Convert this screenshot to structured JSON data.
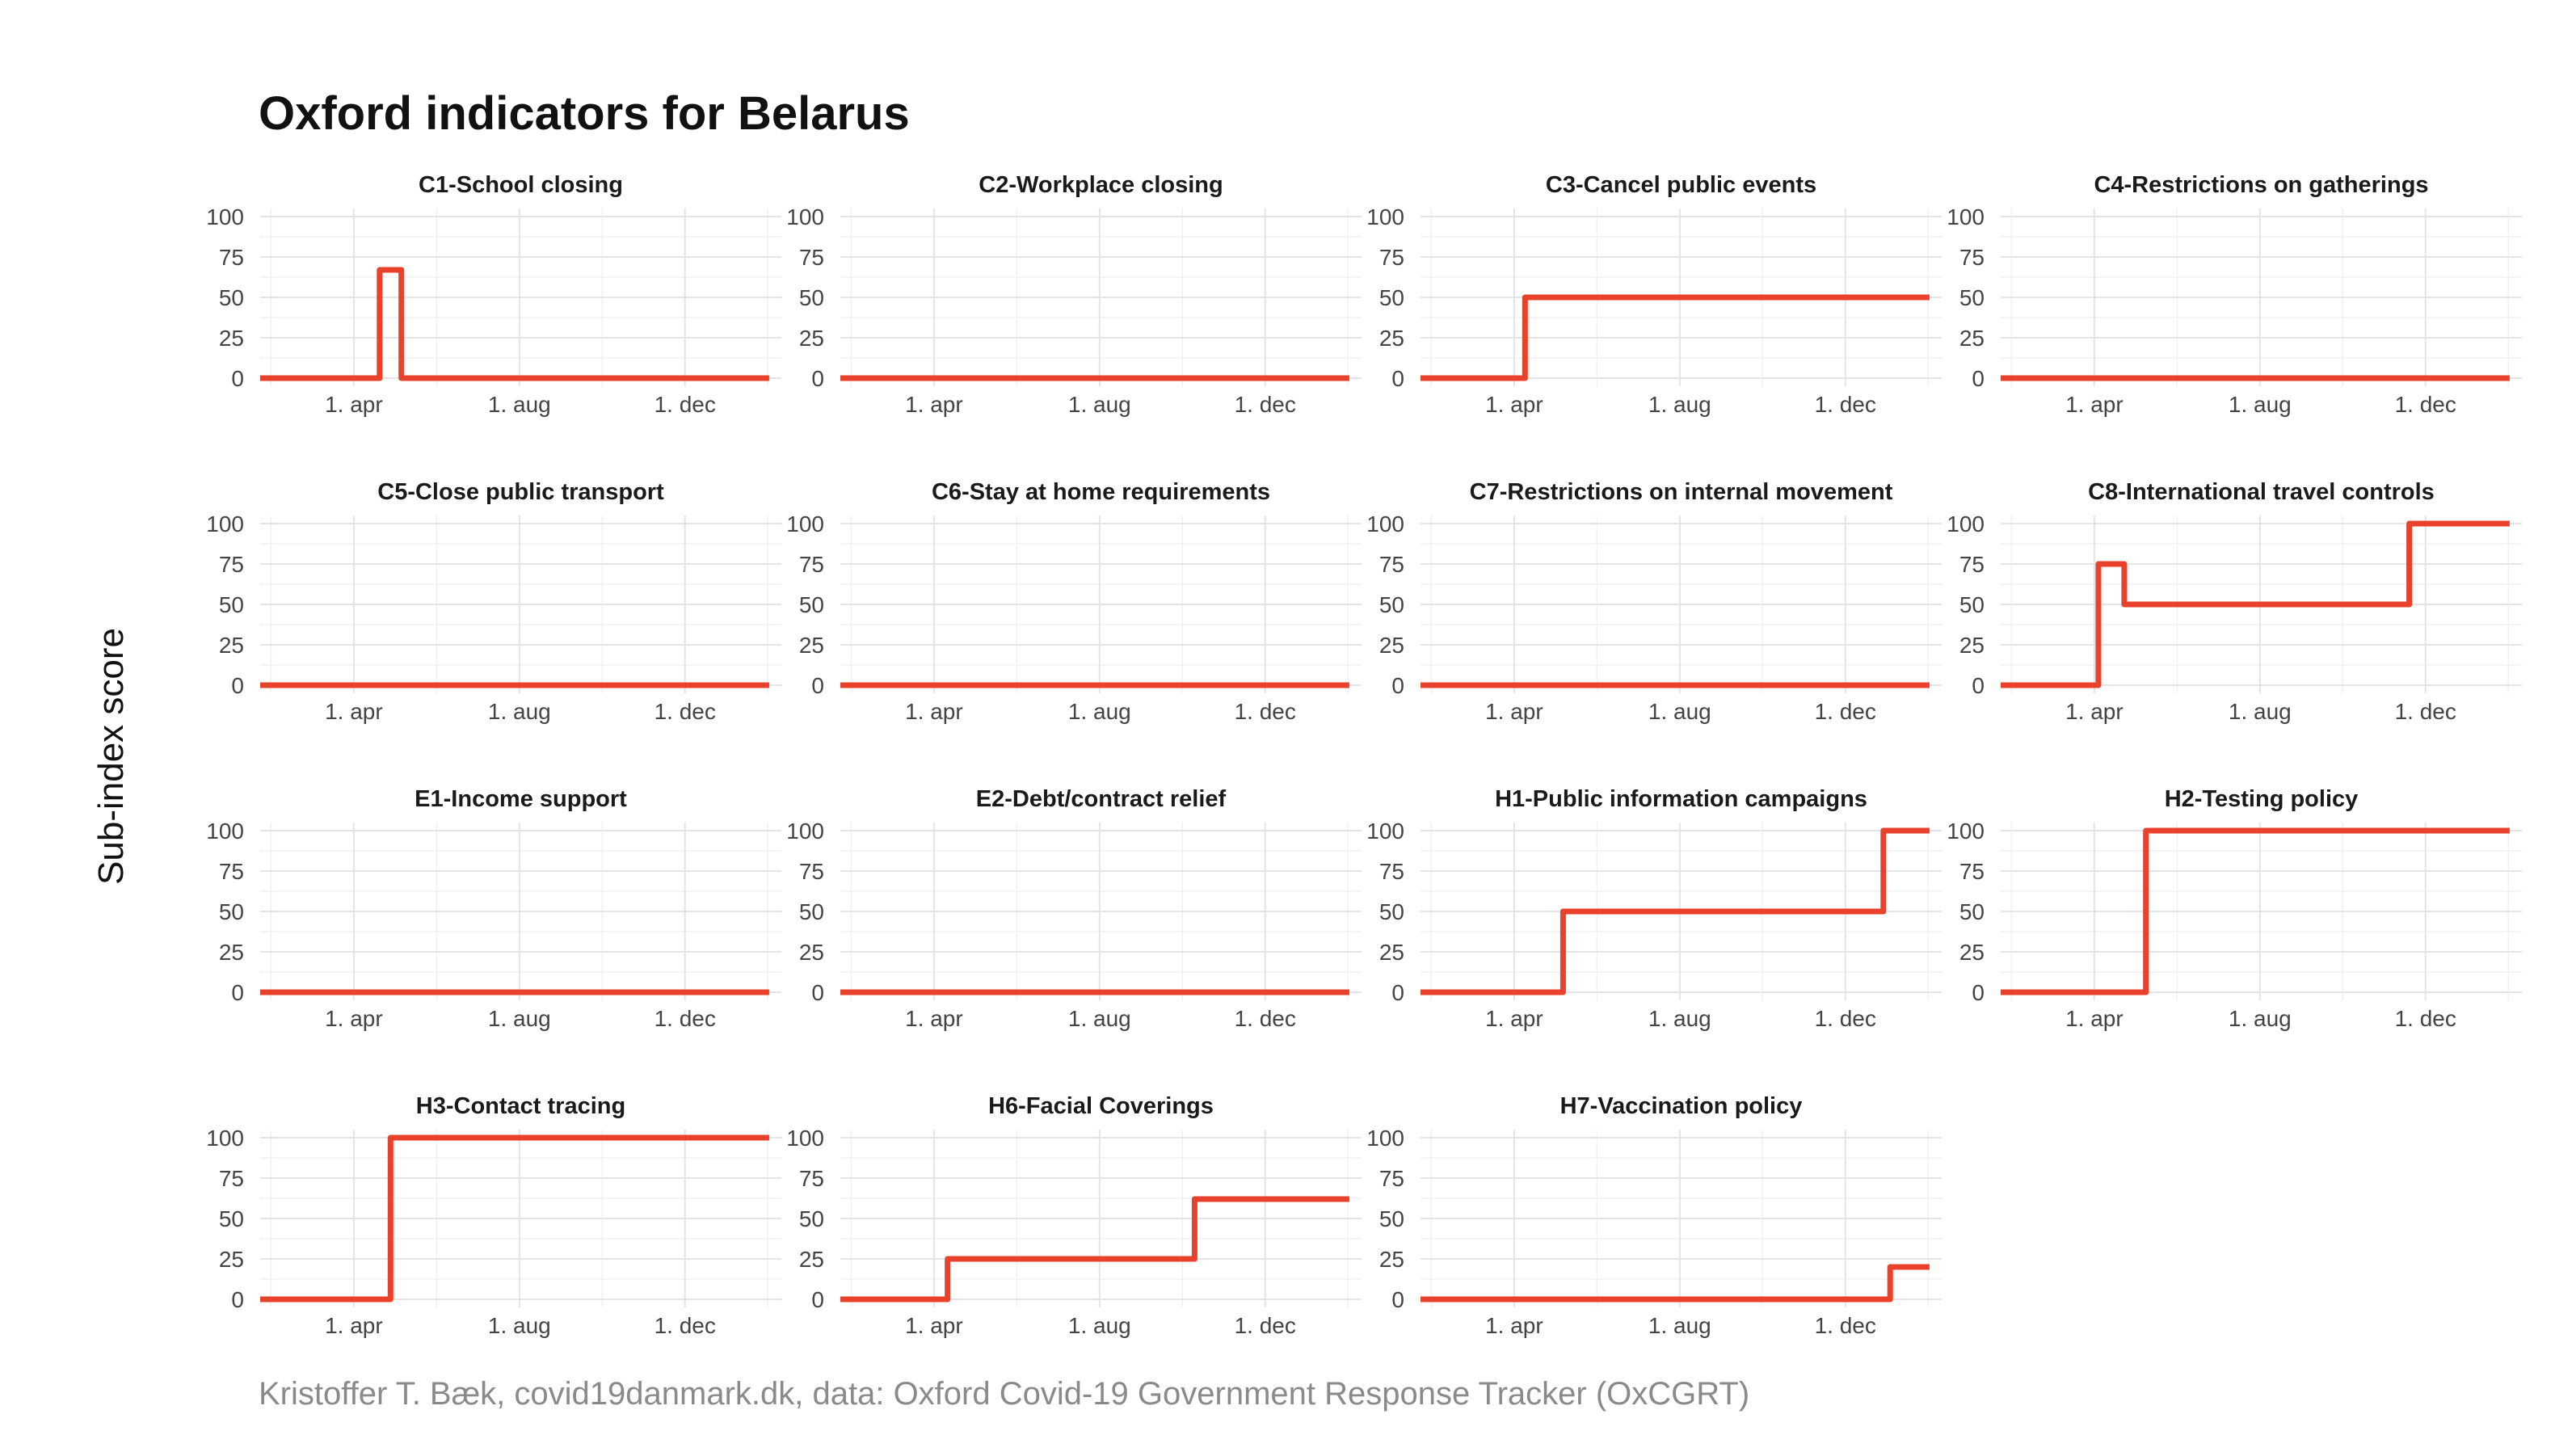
{
  "title": "Oxford indicators for Belarus",
  "ylabel": "Sub-index score",
  "caption": "Kristoffer T. Bæk, covid19danmark.dk, data: Oxford Covid-19 Government Response Tracker (OxCGRT)",
  "colors": {
    "line": "#e8412c",
    "grid": "#e4e4e4",
    "text": "#111111",
    "caption": "#8a8a8a"
  },
  "chart_data": {
    "type": "line",
    "x_unit": "days since 2020-01-01",
    "xlim": [
      22,
      406
    ],
    "ylim": [
      0,
      100
    ],
    "y_ticks": [
      0,
      25,
      50,
      75,
      100
    ],
    "x_ticks": [
      {
        "label": "1. apr",
        "value": 91
      },
      {
        "label": "1. aug",
        "value": 213
      },
      {
        "label": "1. dec",
        "value": 335
      }
    ],
    "panels": [
      {
        "title": "C1-School closing",
        "series": [
          [
            22,
            0
          ],
          [
            110,
            0
          ],
          [
            110,
            67
          ],
          [
            126,
            67
          ],
          [
            126,
            0
          ],
          [
            397,
            0
          ]
        ]
      },
      {
        "title": "C2-Workplace closing",
        "series": [
          [
            22,
            0
          ],
          [
            397,
            0
          ]
        ]
      },
      {
        "title": "C3-Cancel public events",
        "series": [
          [
            22,
            0
          ],
          [
            99,
            0
          ],
          [
            99,
            50
          ],
          [
            397,
            50
          ]
        ]
      },
      {
        "title": "C4-Restrictions on gatherings",
        "series": [
          [
            22,
            0
          ],
          [
            397,
            0
          ]
        ]
      },
      {
        "title": "C5-Close public transport",
        "series": [
          [
            22,
            0
          ],
          [
            397,
            0
          ]
        ]
      },
      {
        "title": "C6-Stay at home requirements",
        "series": [
          [
            22,
            0
          ],
          [
            397,
            0
          ]
        ]
      },
      {
        "title": "C7-Restrictions on internal movement",
        "series": [
          [
            22,
            0
          ],
          [
            397,
            0
          ]
        ]
      },
      {
        "title": "C8-International travel controls",
        "series": [
          [
            22,
            0
          ],
          [
            94,
            0
          ],
          [
            94,
            75
          ],
          [
            113,
            75
          ],
          [
            113,
            50
          ],
          [
            323,
            50
          ],
          [
            323,
            100
          ],
          [
            397,
            100
          ]
        ]
      },
      {
        "title": "E1-Income support",
        "series": [
          [
            22,
            0
          ],
          [
            397,
            0
          ]
        ]
      },
      {
        "title": "E2-Debt/contract relief",
        "series": [
          [
            22,
            0
          ],
          [
            397,
            0
          ]
        ]
      },
      {
        "title": "H1-Public information campaigns",
        "series": [
          [
            22,
            0
          ],
          [
            127,
            0
          ],
          [
            127,
            50
          ],
          [
            363,
            50
          ],
          [
            363,
            100
          ],
          [
            397,
            100
          ]
        ]
      },
      {
        "title": "H2-Testing policy",
        "series": [
          [
            22,
            0
          ],
          [
            129,
            0
          ],
          [
            129,
            100
          ],
          [
            397,
            100
          ]
        ]
      },
      {
        "title": "H3-Contact tracing",
        "series": [
          [
            22,
            0
          ],
          [
            118,
            0
          ],
          [
            118,
            100
          ],
          [
            397,
            100
          ]
        ]
      },
      {
        "title": "H6-Facial Coverings",
        "series": [
          [
            22,
            0
          ],
          [
            101,
            0
          ],
          [
            101,
            25
          ],
          [
            283,
            25
          ],
          [
            283,
            62
          ],
          [
            397,
            62
          ]
        ]
      },
      {
        "title": "H7-Vaccination policy",
        "series": [
          [
            22,
            0
          ],
          [
            368,
            0
          ],
          [
            368,
            20
          ],
          [
            397,
            20
          ]
        ]
      }
    ]
  }
}
